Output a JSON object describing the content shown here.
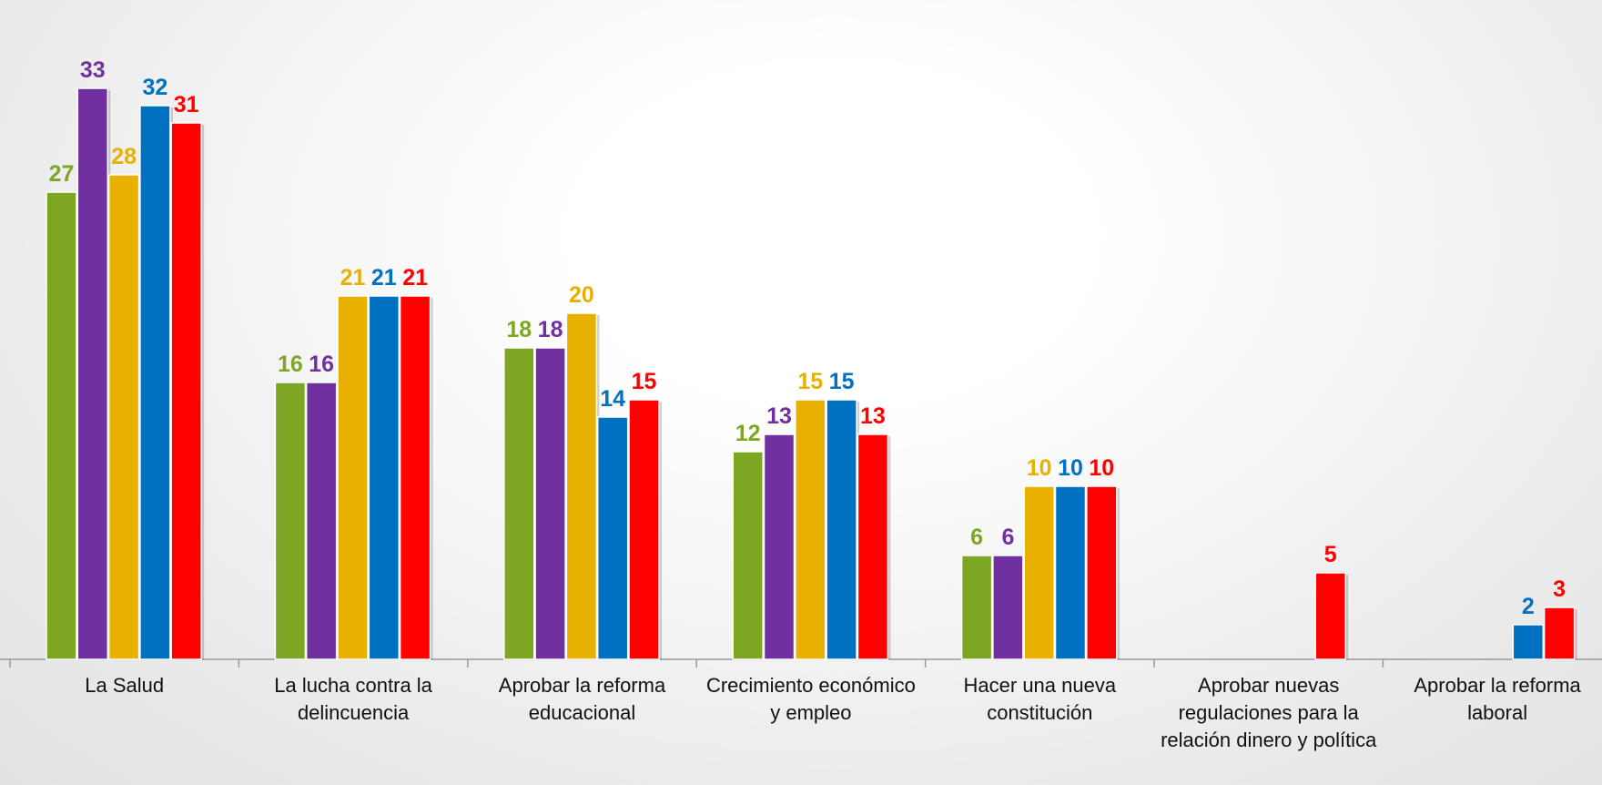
{
  "chart_data": {
    "type": "bar",
    "categories": [
      "La Salud",
      "La lucha contra la delincuencia",
      "Aprobar la reforma educacional",
      "Crecimiento económico y empleo",
      "Hacer una nueva constitución",
      "Aprobar nuevas regulaciones para la relación dinero y política",
      "Aprobar la reforma laboral"
    ],
    "series": [
      {
        "color": "#7da723",
        "values": [
          27,
          16,
          18,
          12,
          6,
          null,
          null
        ]
      },
      {
        "color": "#7030a0",
        "values": [
          33,
          16,
          18,
          13,
          6,
          null,
          null
        ]
      },
      {
        "color": "#e8b000",
        "values": [
          28,
          21,
          20,
          15,
          10,
          null,
          null
        ]
      },
      {
        "color": "#0070c0",
        "values": [
          32,
          21,
          14,
          15,
          10,
          null,
          2
        ]
      },
      {
        "color": "#ff0000",
        "values": [
          31,
          21,
          15,
          13,
          10,
          5,
          3
        ]
      }
    ]
  }
}
